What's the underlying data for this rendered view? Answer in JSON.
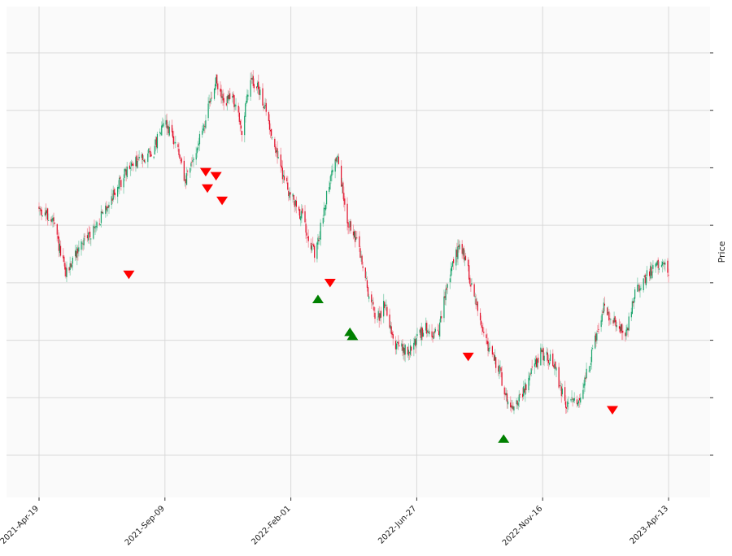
{
  "chart_data": {
    "type": "candlestick",
    "title": "",
    "xlabel": "",
    "ylabel": "Price",
    "grid": true,
    "x_tick_labels": [
      "2021-Apr-19",
      "2021-Sep-09",
      "2022-Feb-01",
      "2022-Jun-27",
      "2022-Nov-16",
      "2023-Apr-13"
    ],
    "y_tick_labels": [
      "",
      "",
      "",
      "",
      "",
      "",
      "",
      ""
    ],
    "colors": {
      "up": "#1aa36b",
      "down": "#e0102a",
      "wick_up": "#9fd8c0",
      "wick_down": "#f4a6b0",
      "sell_marker": "#ff0000",
      "buy_marker": "#008000",
      "plot_bg": "#fafafa",
      "grid": "#d9d9d9"
    },
    "close_path": [
      [
        "2021-04-19",
        0.6
      ],
      [
        "2021-05-05",
        0.57
      ],
      [
        "2021-05-20",
        0.44
      ],
      [
        "2021-06-05",
        0.51
      ],
      [
        "2021-06-25",
        0.56
      ],
      [
        "2021-07-15",
        0.64
      ],
      [
        "2021-08-01",
        0.7
      ],
      [
        "2021-08-20",
        0.73
      ],
      [
        "2021-08-30",
        0.74
      ],
      [
        "2021-09-10",
        0.82
      ],
      [
        "2021-09-25",
        0.76
      ],
      [
        "2021-10-05",
        0.66
      ],
      [
        "2021-10-25",
        0.79
      ],
      [
        "2021-11-10",
        0.91
      ],
      [
        "2021-11-18",
        0.86
      ],
      [
        "2021-11-30",
        0.87
      ],
      [
        "2021-12-10",
        0.79
      ],
      [
        "2021-12-20",
        0.92
      ],
      [
        "2022-01-01",
        0.88
      ],
      [
        "2022-01-10",
        0.81
      ],
      [
        "2022-01-25",
        0.69
      ],
      [
        "2022-02-05",
        0.63
      ],
      [
        "2022-02-20",
        0.57
      ],
      [
        "2022-03-05",
        0.48
      ],
      [
        "2022-03-20",
        0.66
      ],
      [
        "2022-03-30",
        0.73
      ],
      [
        "2022-04-10",
        0.58
      ],
      [
        "2022-04-25",
        0.5
      ],
      [
        "2022-05-05",
        0.4
      ],
      [
        "2022-05-15",
        0.33
      ],
      [
        "2022-05-25",
        0.37
      ],
      [
        "2022-06-05",
        0.27
      ],
      [
        "2022-06-20",
        0.25
      ],
      [
        "2022-07-10",
        0.31
      ],
      [
        "2022-07-25",
        0.29
      ],
      [
        "2022-08-05",
        0.42
      ],
      [
        "2022-08-20",
        0.52
      ],
      [
        "2022-08-25",
        0.48
      ],
      [
        "2022-09-05",
        0.39
      ],
      [
        "2022-09-20",
        0.27
      ],
      [
        "2022-10-05",
        0.2
      ],
      [
        "2022-10-15",
        0.12
      ],
      [
        "2022-10-25",
        0.13
      ],
      [
        "2022-11-05",
        0.17
      ],
      [
        "2022-11-20",
        0.25
      ],
      [
        "2022-12-05",
        0.23
      ],
      [
        "2022-12-20",
        0.12
      ],
      [
        "2023-01-05",
        0.14
      ],
      [
        "2023-01-20",
        0.25
      ],
      [
        "2023-02-01",
        0.36
      ],
      [
        "2023-02-15",
        0.32
      ],
      [
        "2023-02-28",
        0.3
      ],
      [
        "2023-03-10",
        0.39
      ],
      [
        "2023-03-25",
        0.44
      ],
      [
        "2023-04-05",
        0.47
      ],
      [
        "2023-04-18",
        0.45
      ]
    ],
    "markers": [
      {
        "signal": "sell",
        "date": "2021-08-01",
        "value": 0.44
      },
      {
        "signal": "sell",
        "date": "2021-10-29",
        "value": 0.69
      },
      {
        "signal": "sell",
        "date": "2021-10-31",
        "value": 0.65
      },
      {
        "signal": "sell",
        "date": "2021-11-10",
        "value": 0.68
      },
      {
        "signal": "sell",
        "date": "2021-11-17",
        "value": 0.62
      },
      {
        "signal": "buy",
        "date": "2022-03-08",
        "value": 0.38
      },
      {
        "signal": "sell",
        "date": "2022-03-22",
        "value": 0.42
      },
      {
        "signal": "buy",
        "date": "2022-04-14",
        "value": 0.3
      },
      {
        "signal": "buy",
        "date": "2022-04-17",
        "value": 0.29
      },
      {
        "signal": "sell",
        "date": "2022-08-29",
        "value": 0.24
      },
      {
        "signal": "buy",
        "date": "2022-10-09",
        "value": 0.04
      },
      {
        "signal": "sell",
        "date": "2023-02-12",
        "value": 0.11
      }
    ]
  }
}
